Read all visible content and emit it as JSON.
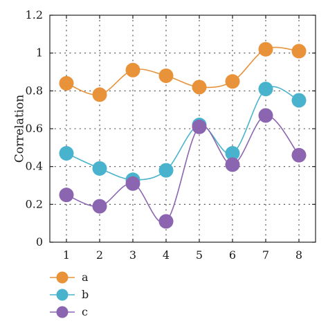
{
  "chart_data": {
    "type": "line",
    "x": [
      1,
      2,
      3,
      4,
      5,
      6,
      7,
      8
    ],
    "x_tick_labels": [
      "1",
      "2",
      "3",
      "4",
      "5",
      "6",
      "7",
      "8"
    ],
    "y_tick_labels": [
      "0",
      "0.2",
      "0.4",
      "0.6",
      "0.8",
      "1",
      "1.2"
    ],
    "ylabel": "Correlation",
    "xlabel": "",
    "xlim": [
      0.5,
      8.5
    ],
    "ylim": [
      0,
      1.2
    ],
    "grid": true,
    "legend_position": "bottom-left, below plot",
    "series": [
      {
        "name": "a",
        "color": "#e8923a",
        "values": [
          0.84,
          0.78,
          0.91,
          0.88,
          0.82,
          0.85,
          1.02,
          1.01
        ]
      },
      {
        "name": "b",
        "color": "#49b3cd",
        "values": [
          0.47,
          0.39,
          0.33,
          0.38,
          0.62,
          0.47,
          0.81,
          0.75
        ]
      },
      {
        "name": "c",
        "color": "#8b65b0",
        "values": [
          0.25,
          0.19,
          0.31,
          0.11,
          0.61,
          0.41,
          0.67,
          0.46
        ]
      }
    ]
  }
}
